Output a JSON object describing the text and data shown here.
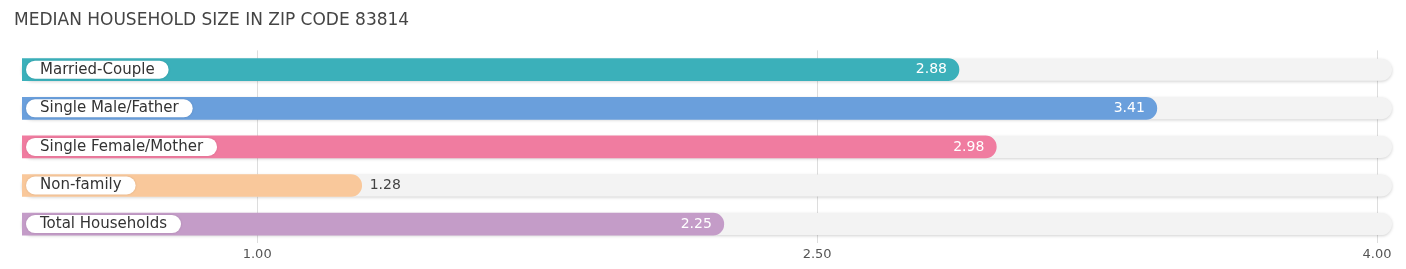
{
  "chart_data": {
    "type": "bar",
    "orientation": "horizontal",
    "title": "MEDIAN HOUSEHOLD SIZE IN ZIP CODE 83814",
    "categories": [
      "Married-Couple",
      "Single Male/Father",
      "Single Female/Mother",
      "Non-family",
      "Total Households"
    ],
    "values": [
      2.88,
      3.41,
      2.98,
      1.28,
      2.25
    ],
    "colors": [
      "#3bb0ba",
      "#6a9fdc",
      "#f07ca0",
      "#f9c89b",
      "#c49cc8"
    ],
    "xlim": [
      0.37,
      4.04
    ],
    "xticks": [
      {
        "value": 1,
        "label": "1.00"
      },
      {
        "value": 2.5,
        "label": "2.50"
      },
      {
        "value": 4,
        "label": "4.00"
      }
    ],
    "grid": "x",
    "data_labels": true,
    "legend": false
  }
}
